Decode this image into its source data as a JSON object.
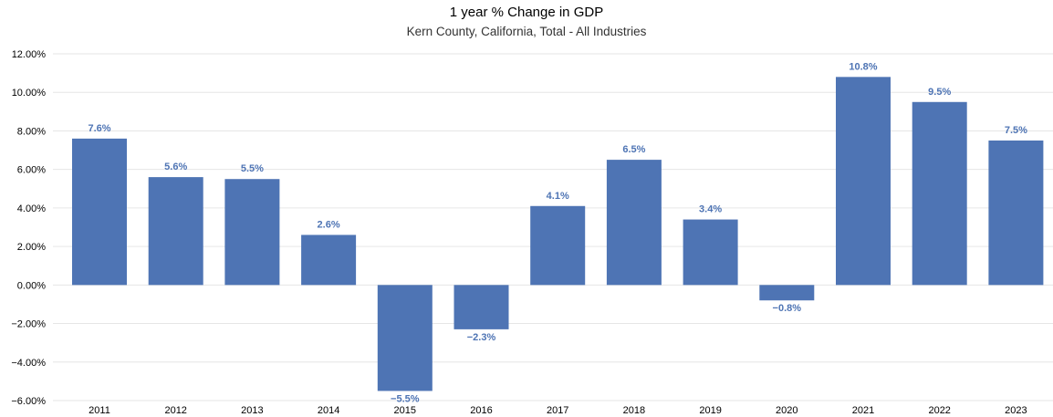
{
  "chart_data": {
    "type": "bar",
    "title": "1 year % Change in GDP",
    "subtitle": "Kern County, California, Total - All Industries",
    "categories": [
      "2011",
      "2012",
      "2013",
      "2014",
      "2015",
      "2016",
      "2017",
      "2018",
      "2019",
      "2020",
      "2021",
      "2022",
      "2023"
    ],
    "values": [
      7.6,
      5.6,
      5.5,
      2.6,
      -5.5,
      -2.3,
      4.1,
      6.5,
      3.4,
      -0.8,
      10.8,
      9.5,
      7.5
    ],
    "data_labels": [
      "7.6%",
      "5.6%",
      "5.5%",
      "2.6%",
      "−5.5%",
      "−2.3%",
      "4.1%",
      "6.5%",
      "3.4%",
      "−0.8%",
      "10.8%",
      "9.5%",
      "7.5%"
    ],
    "y_ticks": [
      12,
      10,
      8,
      6,
      4,
      2,
      0,
      -2,
      -4,
      -6
    ],
    "y_tick_labels": [
      "12.00%",
      "10.00%",
      "8.00%",
      "6.00%",
      "4.00%",
      "2.00%",
      "0.00%",
      "−2.00%",
      "−4.00%",
      "−6.00%"
    ],
    "ylim": [
      -6,
      12
    ],
    "xlabel": "",
    "ylabel": "",
    "grid": true,
    "legend": "none",
    "bar_color": "#4e74b4",
    "label_color": "#4e74b4",
    "grid_color": "#e6e6e6"
  }
}
